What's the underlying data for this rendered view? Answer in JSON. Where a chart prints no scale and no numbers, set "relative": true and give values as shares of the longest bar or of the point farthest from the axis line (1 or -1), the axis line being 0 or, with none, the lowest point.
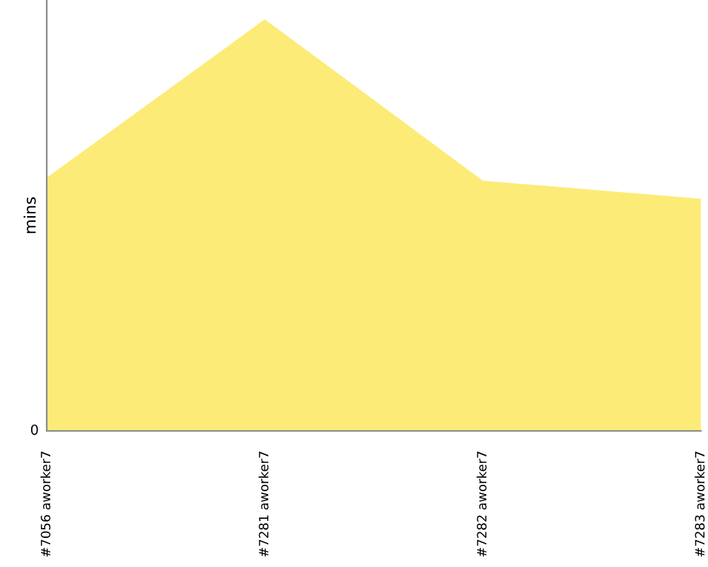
{
  "chart_data": {
    "type": "area",
    "relative": true,
    "ylabel": "mins",
    "categories": [
      "#7056 aworker7",
      "#7281 aworker7",
      "#7282 aworker7",
      "#7283 aworker7"
    ],
    "series": [
      {
        "color": "#fceb77",
        "values": [
          0.615,
          1,
          0.608,
          0.564
        ]
      }
    ],
    "annotations": [
      "0"
    ]
  }
}
